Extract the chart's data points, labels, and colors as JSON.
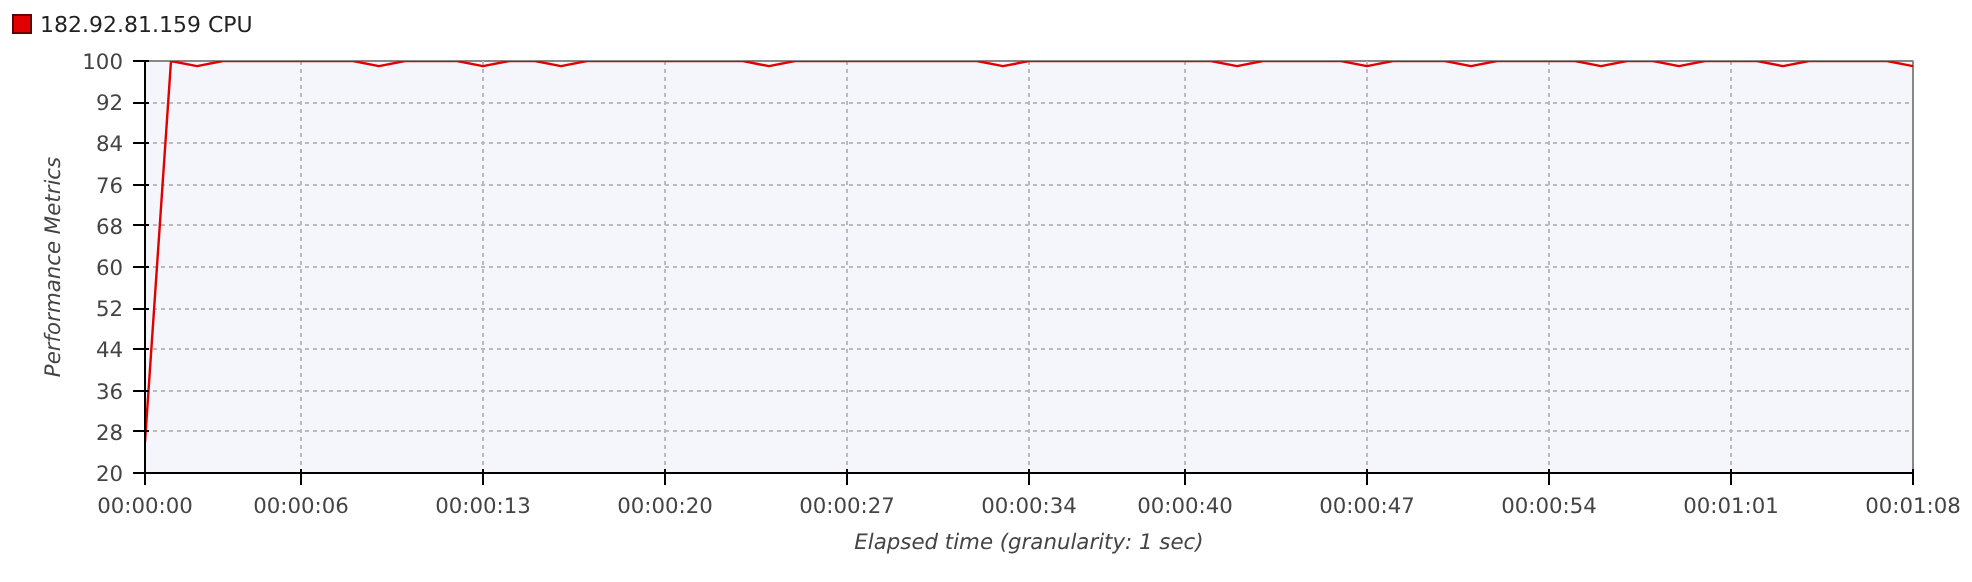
{
  "chart_data": {
    "type": "line",
    "xlabel": "Elapsed time (granularity: 1 sec)",
    "ylabel": "Performance Metrics",
    "x": [
      0,
      1,
      2,
      3,
      4,
      5,
      6,
      7,
      8,
      9,
      10,
      11,
      12,
      13,
      14,
      15,
      16,
      17,
      18,
      19,
      20,
      21,
      22,
      23,
      24,
      25,
      26,
      27,
      28,
      29,
      30,
      31,
      32,
      33,
      34,
      35,
      36,
      37,
      38,
      39,
      40,
      41,
      42,
      43,
      44,
      45,
      46,
      47,
      48,
      49,
      50,
      51,
      52,
      53,
      54,
      55,
      56,
      57,
      58,
      59,
      60,
      61,
      62,
      63,
      64,
      65,
      66,
      67,
      68
    ],
    "series": [
      {
        "name": "182.92.81.159 CPU",
        "color": "#e00000",
        "values": [
          26,
          100,
          99,
          100,
          100,
          100,
          100,
          100,
          100,
          99,
          100,
          100,
          100,
          99,
          100,
          100,
          99,
          100,
          100,
          100,
          100,
          100,
          100,
          100,
          99,
          100,
          100,
          100,
          100,
          100,
          100,
          100,
          100,
          99,
          100,
          100,
          100,
          100,
          100,
          100,
          100,
          100,
          99,
          100,
          100,
          100,
          100,
          99,
          100,
          100,
          100,
          99,
          100,
          100,
          100,
          100,
          99,
          100,
          100,
          99,
          100,
          100,
          100,
          99,
          100,
          100,
          100,
          100,
          99
        ]
      }
    ],
    "xlim": [
      0,
      68
    ],
    "ylim": [
      20,
      100
    ],
    "xticks": [
      {
        "value": 0,
        "label": "00:00:00"
      },
      {
        "value": 6,
        "label": "00:00:06"
      },
      {
        "value": 13,
        "label": "00:00:13"
      },
      {
        "value": 20,
        "label": "00:00:20"
      },
      {
        "value": 27,
        "label": "00:00:27"
      },
      {
        "value": 34,
        "label": "00:00:34"
      },
      {
        "value": 40,
        "label": "00:00:40"
      },
      {
        "value": 47,
        "label": "00:00:47"
      },
      {
        "value": 54,
        "label": "00:00:54"
      },
      {
        "value": 61,
        "label": "00:01:01"
      },
      {
        "value": 68,
        "label": "00:01:08"
      }
    ],
    "yticks": [
      20,
      28,
      36,
      44,
      52,
      60,
      68,
      76,
      84,
      92,
      100
    ],
    "grid": true,
    "legend": "top left",
    "marker": "none",
    "line_style": "solid"
  }
}
